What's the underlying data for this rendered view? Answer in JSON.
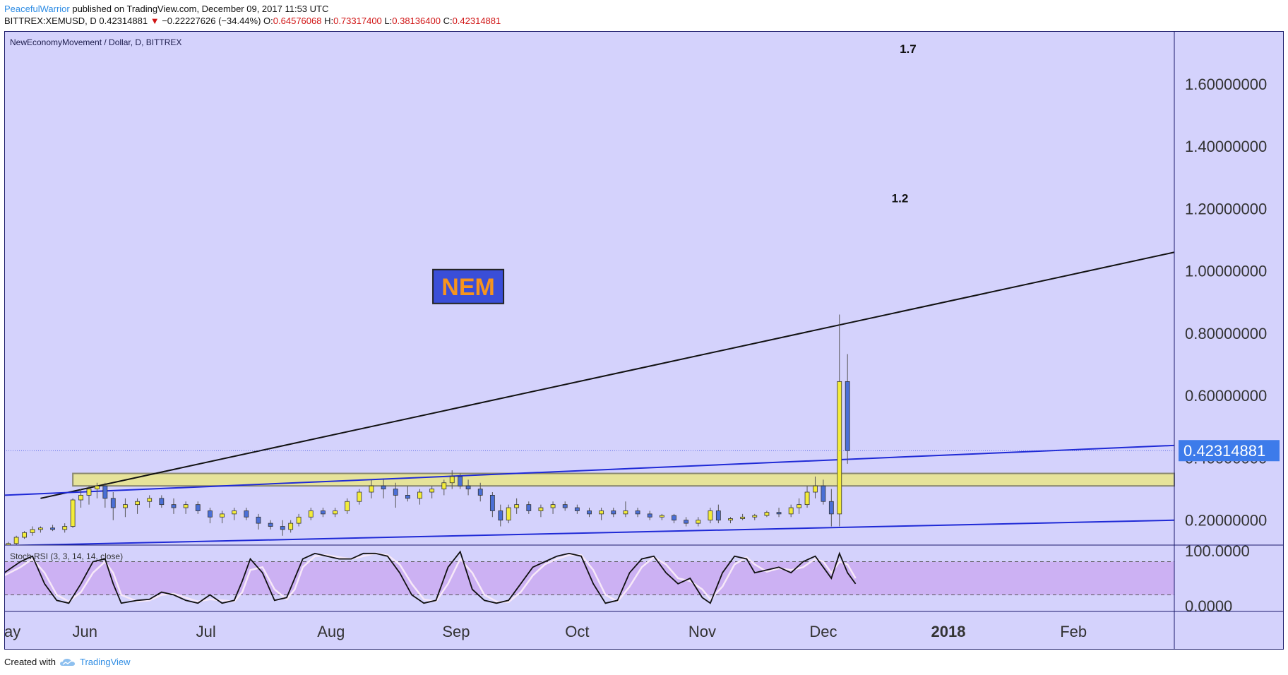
{
  "header": {
    "author": "PeacefulWarrior",
    "published": "published on TradingView.com, December 09, 2017 11:53 UTC",
    "symbol": "BITTREX:XEMUSD, D",
    "last": "0.42314881",
    "change_arrow": "▼",
    "change": "−0.22227626 (−34.44%)",
    "o_label": "O:",
    "o": "0.64576068",
    "h_label": "H:",
    "h": "0.73317400",
    "l_label": "L:",
    "l": "0.38136400",
    "c_label": "C:",
    "c": "0.42314881"
  },
  "footer": {
    "created_with": "Created with",
    "brand": "TradingView"
  },
  "chart_data": {
    "type": "candlestick",
    "title": "NewEconomyMovement / Dollar, D, BITTREX",
    "price_axis": {
      "ticks": [
        "1.60000000",
        "1.40000000",
        "1.20000000",
        "1.00000000",
        "0.80000000",
        "0.60000000",
        "0.40000000",
        "0.20000000"
      ],
      "tick_values": [
        1.6,
        1.4,
        1.2,
        1.0,
        0.8,
        0.6,
        0.4,
        0.2
      ],
      "ylim": [
        0.12,
        1.77
      ],
      "last_price_label": "0.42314881",
      "last_price": 0.42314881
    },
    "time_axis": {
      "labels": [
        "ay",
        "Jun",
        "Jul",
        "Aug",
        "Sep",
        "Oct",
        "Nov",
        "Dec",
        "2018",
        "Feb"
      ],
      "days": [
        0,
        20,
        50,
        81,
        112,
        142,
        173,
        203,
        234,
        265
      ],
      "bold": [
        false,
        false,
        false,
        false,
        false,
        false,
        false,
        false,
        true,
        false
      ],
      "range_days": [
        0,
        290
      ]
    },
    "annotations": [
      {
        "text": "1.7",
        "day": 224,
        "price": 1.7
      },
      {
        "text": "1.2",
        "day": 222,
        "price": 1.22
      },
      {
        "text": "NEM",
        "day": 115,
        "price": 0.95,
        "box_color": "#3a4ed8",
        "text_color": "#f7941d"
      }
    ],
    "resistance_zone": {
      "day_from": 17,
      "day_to": 290,
      "price_low": 0.31,
      "price_high": 0.35,
      "color": "#e6e39a"
    },
    "trendlines": [
      {
        "from": [
          9,
          0.27
        ],
        "to": [
          290,
          1.06
        ],
        "color": "#111111"
      },
      {
        "from": [
          0,
          0.28
        ],
        "to": [
          290,
          0.44
        ],
        "color": "#1f2ad6"
      },
      {
        "from": [
          0,
          0.118
        ],
        "to": [
          290,
          0.2
        ],
        "color": "#1f2ad6"
      }
    ],
    "candles": [
      {
        "day": 1,
        "o": 0.12,
        "h": 0.13,
        "l": 0.115,
        "c": 0.125
      },
      {
        "day": 3,
        "o": 0.125,
        "h": 0.15,
        "l": 0.12,
        "c": 0.145
      },
      {
        "day": 5,
        "o": 0.145,
        "h": 0.165,
        "l": 0.14,
        "c": 0.16
      },
      {
        "day": 7,
        "o": 0.16,
        "h": 0.18,
        "l": 0.15,
        "c": 0.17
      },
      {
        "day": 9,
        "o": 0.17,
        "h": 0.18,
        "l": 0.16,
        "c": 0.175
      },
      {
        "day": 12,
        "o": 0.175,
        "h": 0.185,
        "l": 0.165,
        "c": 0.17
      },
      {
        "day": 15,
        "o": 0.17,
        "h": 0.19,
        "l": 0.16,
        "c": 0.18
      },
      {
        "day": 17,
        "o": 0.18,
        "h": 0.27,
        "l": 0.175,
        "c": 0.265
      },
      {
        "day": 19,
        "o": 0.265,
        "h": 0.3,
        "l": 0.24,
        "c": 0.28
      },
      {
        "day": 21,
        "o": 0.28,
        "h": 0.31,
        "l": 0.25,
        "c": 0.3
      },
      {
        "day": 23,
        "o": 0.3,
        "h": 0.32,
        "l": 0.27,
        "c": 0.31
      },
      {
        "day": 25,
        "o": 0.31,
        "h": 0.32,
        "l": 0.24,
        "c": 0.27
      },
      {
        "day": 27,
        "o": 0.27,
        "h": 0.29,
        "l": 0.2,
        "c": 0.24
      },
      {
        "day": 30,
        "o": 0.24,
        "h": 0.27,
        "l": 0.21,
        "c": 0.25
      },
      {
        "day": 33,
        "o": 0.25,
        "h": 0.27,
        "l": 0.22,
        "c": 0.26
      },
      {
        "day": 36,
        "o": 0.26,
        "h": 0.28,
        "l": 0.24,
        "c": 0.27
      },
      {
        "day": 39,
        "o": 0.27,
        "h": 0.28,
        "l": 0.24,
        "c": 0.25
      },
      {
        "day": 42,
        "o": 0.25,
        "h": 0.27,
        "l": 0.22,
        "c": 0.24
      },
      {
        "day": 45,
        "o": 0.24,
        "h": 0.26,
        "l": 0.22,
        "c": 0.25
      },
      {
        "day": 48,
        "o": 0.25,
        "h": 0.26,
        "l": 0.22,
        "c": 0.23
      },
      {
        "day": 51,
        "o": 0.23,
        "h": 0.24,
        "l": 0.19,
        "c": 0.21
      },
      {
        "day": 54,
        "o": 0.21,
        "h": 0.23,
        "l": 0.19,
        "c": 0.22
      },
      {
        "day": 57,
        "o": 0.22,
        "h": 0.24,
        "l": 0.2,
        "c": 0.23
      },
      {
        "day": 60,
        "o": 0.23,
        "h": 0.24,
        "l": 0.2,
        "c": 0.21
      },
      {
        "day": 63,
        "o": 0.21,
        "h": 0.22,
        "l": 0.17,
        "c": 0.19
      },
      {
        "day": 66,
        "o": 0.19,
        "h": 0.2,
        "l": 0.17,
        "c": 0.18
      },
      {
        "day": 69,
        "o": 0.18,
        "h": 0.2,
        "l": 0.15,
        "c": 0.17
      },
      {
        "day": 71,
        "o": 0.17,
        "h": 0.2,
        "l": 0.16,
        "c": 0.19
      },
      {
        "day": 73,
        "o": 0.19,
        "h": 0.22,
        "l": 0.18,
        "c": 0.21
      },
      {
        "day": 76,
        "o": 0.21,
        "h": 0.24,
        "l": 0.2,
        "c": 0.23
      },
      {
        "day": 79,
        "o": 0.23,
        "h": 0.24,
        "l": 0.21,
        "c": 0.22
      },
      {
        "day": 82,
        "o": 0.22,
        "h": 0.24,
        "l": 0.21,
        "c": 0.23
      },
      {
        "day": 85,
        "o": 0.23,
        "h": 0.27,
        "l": 0.22,
        "c": 0.26
      },
      {
        "day": 88,
        "o": 0.26,
        "h": 0.3,
        "l": 0.25,
        "c": 0.29
      },
      {
        "day": 91,
        "o": 0.29,
        "h": 0.33,
        "l": 0.27,
        "c": 0.31
      },
      {
        "day": 94,
        "o": 0.31,
        "h": 0.33,
        "l": 0.27,
        "c": 0.3
      },
      {
        "day": 97,
        "o": 0.3,
        "h": 0.32,
        "l": 0.24,
        "c": 0.28
      },
      {
        "day": 100,
        "o": 0.28,
        "h": 0.31,
        "l": 0.26,
        "c": 0.27
      },
      {
        "day": 103,
        "o": 0.27,
        "h": 0.3,
        "l": 0.25,
        "c": 0.29
      },
      {
        "day": 106,
        "o": 0.29,
        "h": 0.31,
        "l": 0.27,
        "c": 0.3
      },
      {
        "day": 109,
        "o": 0.3,
        "h": 0.33,
        "l": 0.28,
        "c": 0.32
      },
      {
        "day": 111,
        "o": 0.32,
        "h": 0.36,
        "l": 0.3,
        "c": 0.34
      },
      {
        "day": 113,
        "o": 0.34,
        "h": 0.35,
        "l": 0.3,
        "c": 0.31
      },
      {
        "day": 115,
        "o": 0.31,
        "h": 0.33,
        "l": 0.28,
        "c": 0.3
      },
      {
        "day": 118,
        "o": 0.3,
        "h": 0.32,
        "l": 0.26,
        "c": 0.28
      },
      {
        "day": 121,
        "o": 0.28,
        "h": 0.29,
        "l": 0.21,
        "c": 0.23
      },
      {
        "day": 123,
        "o": 0.23,
        "h": 0.25,
        "l": 0.18,
        "c": 0.2
      },
      {
        "day": 125,
        "o": 0.2,
        "h": 0.25,
        "l": 0.19,
        "c": 0.24
      },
      {
        "day": 127,
        "o": 0.24,
        "h": 0.27,
        "l": 0.22,
        "c": 0.25
      },
      {
        "day": 130,
        "o": 0.25,
        "h": 0.26,
        "l": 0.22,
        "c": 0.23
      },
      {
        "day": 133,
        "o": 0.23,
        "h": 0.25,
        "l": 0.21,
        "c": 0.24
      },
      {
        "day": 136,
        "o": 0.24,
        "h": 0.26,
        "l": 0.22,
        "c": 0.25
      },
      {
        "day": 139,
        "o": 0.25,
        "h": 0.26,
        "l": 0.23,
        "c": 0.24
      },
      {
        "day": 142,
        "o": 0.24,
        "h": 0.25,
        "l": 0.22,
        "c": 0.23
      },
      {
        "day": 145,
        "o": 0.23,
        "h": 0.24,
        "l": 0.21,
        "c": 0.22
      },
      {
        "day": 148,
        "o": 0.22,
        "h": 0.24,
        "l": 0.2,
        "c": 0.23
      },
      {
        "day": 151,
        "o": 0.23,
        "h": 0.24,
        "l": 0.21,
        "c": 0.22
      },
      {
        "day": 154,
        "o": 0.22,
        "h": 0.26,
        "l": 0.21,
        "c": 0.23
      },
      {
        "day": 157,
        "o": 0.23,
        "h": 0.24,
        "l": 0.21,
        "c": 0.22
      },
      {
        "day": 160,
        "o": 0.22,
        "h": 0.23,
        "l": 0.2,
        "c": 0.21
      },
      {
        "day": 163,
        "o": 0.21,
        "h": 0.22,
        "l": 0.2,
        "c": 0.215
      },
      {
        "day": 166,
        "o": 0.215,
        "h": 0.22,
        "l": 0.19,
        "c": 0.2
      },
      {
        "day": 169,
        "o": 0.2,
        "h": 0.21,
        "l": 0.18,
        "c": 0.19
      },
      {
        "day": 172,
        "o": 0.19,
        "h": 0.21,
        "l": 0.18,
        "c": 0.2
      },
      {
        "day": 175,
        "o": 0.2,
        "h": 0.24,
        "l": 0.19,
        "c": 0.23
      },
      {
        "day": 177,
        "o": 0.23,
        "h": 0.25,
        "l": 0.19,
        "c": 0.2
      },
      {
        "day": 180,
        "o": 0.2,
        "h": 0.21,
        "l": 0.19,
        "c": 0.205
      },
      {
        "day": 183,
        "o": 0.205,
        "h": 0.22,
        "l": 0.2,
        "c": 0.21
      },
      {
        "day": 186,
        "o": 0.21,
        "h": 0.22,
        "l": 0.2,
        "c": 0.215
      },
      {
        "day": 189,
        "o": 0.215,
        "h": 0.23,
        "l": 0.21,
        "c": 0.225
      },
      {
        "day": 192,
        "o": 0.225,
        "h": 0.24,
        "l": 0.21,
        "c": 0.22
      },
      {
        "day": 195,
        "o": 0.22,
        "h": 0.25,
        "l": 0.21,
        "c": 0.24
      },
      {
        "day": 197,
        "o": 0.24,
        "h": 0.27,
        "l": 0.22,
        "c": 0.25
      },
      {
        "day": 199,
        "o": 0.25,
        "h": 0.31,
        "l": 0.24,
        "c": 0.29
      },
      {
        "day": 201,
        "o": 0.29,
        "h": 0.34,
        "l": 0.27,
        "c": 0.31
      },
      {
        "day": 203,
        "o": 0.31,
        "h": 0.33,
        "l": 0.25,
        "c": 0.26
      },
      {
        "day": 205,
        "o": 0.26,
        "h": 0.3,
        "l": 0.18,
        "c": 0.22
      },
      {
        "day": 207,
        "o": 0.22,
        "h": 0.86,
        "l": 0.18,
        "c": 0.645
      },
      {
        "day": 209,
        "o": 0.645,
        "h": 0.733,
        "l": 0.381,
        "c": 0.423
      }
    ],
    "indicator": {
      "name": "Stoch RSI (3, 3, 14, 14, close)",
      "ticks": [
        "100.0000",
        "0.0000"
      ],
      "tick_values": [
        100,
        0
      ],
      "ylim": [
        -10,
        110
      ],
      "band_upper": 80,
      "band_lower": 20,
      "band_color": "#c9a3f0",
      "k_color": "#111111",
      "d_color": "#f6e8f8",
      "k": [
        [
          0,
          60
        ],
        [
          4,
          80
        ],
        [
          7,
          90
        ],
        [
          10,
          40
        ],
        [
          13,
          10
        ],
        [
          16,
          5
        ],
        [
          19,
          40
        ],
        [
          22,
          80
        ],
        [
          25,
          85
        ],
        [
          27,
          40
        ],
        [
          29,
          5
        ],
        [
          33,
          10
        ],
        [
          36,
          12
        ],
        [
          39,
          25
        ],
        [
          42,
          20
        ],
        [
          45,
          10
        ],
        [
          48,
          5
        ],
        [
          51,
          20
        ],
        [
          54,
          5
        ],
        [
          57,
          10
        ],
        [
          59,
          45
        ],
        [
          61,
          85
        ],
        [
          64,
          60
        ],
        [
          67,
          10
        ],
        [
          70,
          15
        ],
        [
          72,
          50
        ],
        [
          74,
          85
        ],
        [
          77,
          95
        ],
        [
          80,
          90
        ],
        [
          83,
          85
        ],
        [
          86,
          85
        ],
        [
          89,
          95
        ],
        [
          92,
          95
        ],
        [
          95,
          90
        ],
        [
          98,
          60
        ],
        [
          101,
          20
        ],
        [
          104,
          5
        ],
        [
          107,
          10
        ],
        [
          110,
          70
        ],
        [
          113,
          98
        ],
        [
          116,
          30
        ],
        [
          119,
          10
        ],
        [
          122,
          5
        ],
        [
          125,
          10
        ],
        [
          128,
          40
        ],
        [
          131,
          70
        ],
        [
          134,
          80
        ],
        [
          137,
          90
        ],
        [
          140,
          95
        ],
        [
          143,
          90
        ],
        [
          146,
          40
        ],
        [
          149,
          5
        ],
        [
          152,
          10
        ],
        [
          155,
          60
        ],
        [
          158,
          85
        ],
        [
          161,
          90
        ],
        [
          164,
          60
        ],
        [
          167,
          40
        ],
        [
          170,
          50
        ],
        [
          173,
          15
        ],
        [
          175,
          5
        ],
        [
          178,
          60
        ],
        [
          181,
          90
        ],
        [
          184,
          85
        ],
        [
          186,
          60
        ],
        [
          189,
          65
        ],
        [
          192,
          70
        ],
        [
          195,
          60
        ],
        [
          198,
          80
        ],
        [
          201,
          90
        ],
        [
          203,
          70
        ],
        [
          205,
          50
        ],
        [
          207,
          95
        ],
        [
          209,
          60
        ],
        [
          211,
          40
        ]
      ],
      "d": [
        [
          0,
          55
        ],
        [
          4,
          70
        ],
        [
          7,
          85
        ],
        [
          10,
          60
        ],
        [
          13,
          20
        ],
        [
          16,
          8
        ],
        [
          19,
          25
        ],
        [
          22,
          60
        ],
        [
          25,
          80
        ],
        [
          27,
          60
        ],
        [
          29,
          20
        ],
        [
          33,
          8
        ],
        [
          36,
          10
        ],
        [
          39,
          20
        ],
        [
          42,
          22
        ],
        [
          45,
          15
        ],
        [
          48,
          8
        ],
        [
          51,
          12
        ],
        [
          54,
          10
        ],
        [
          57,
          8
        ],
        [
          59,
          25
        ],
        [
          61,
          65
        ],
        [
          64,
          70
        ],
        [
          67,
          30
        ],
        [
          70,
          12
        ],
        [
          72,
          30
        ],
        [
          74,
          70
        ],
        [
          77,
          90
        ],
        [
          80,
          92
        ],
        [
          83,
          88
        ],
        [
          86,
          85
        ],
        [
          89,
          90
        ],
        [
          92,
          95
        ],
        [
          95,
          92
        ],
        [
          98,
          75
        ],
        [
          101,
          40
        ],
        [
          104,
          12
        ],
        [
          107,
          8
        ],
        [
          110,
          40
        ],
        [
          113,
          85
        ],
        [
          116,
          60
        ],
        [
          119,
          20
        ],
        [
          122,
          8
        ],
        [
          125,
          7
        ],
        [
          128,
          25
        ],
        [
          131,
          55
        ],
        [
          134,
          75
        ],
        [
          137,
          85
        ],
        [
          140,
          92
        ],
        [
          143,
          92
        ],
        [
          146,
          65
        ],
        [
          149,
          20
        ],
        [
          152,
          8
        ],
        [
          155,
          35
        ],
        [
          158,
          70
        ],
        [
          161,
          88
        ],
        [
          164,
          75
        ],
        [
          167,
          50
        ],
        [
          170,
          45
        ],
        [
          173,
          30
        ],
        [
          175,
          12
        ],
        [
          178,
          35
        ],
        [
          181,
          75
        ],
        [
          184,
          88
        ],
        [
          186,
          75
        ],
        [
          189,
          62
        ],
        [
          192,
          68
        ],
        [
          195,
          65
        ],
        [
          198,
          70
        ],
        [
          201,
          85
        ],
        [
          203,
          80
        ],
        [
          205,
          60
        ],
        [
          207,
          80
        ],
        [
          209,
          75
        ],
        [
          211,
          50
        ]
      ]
    }
  }
}
